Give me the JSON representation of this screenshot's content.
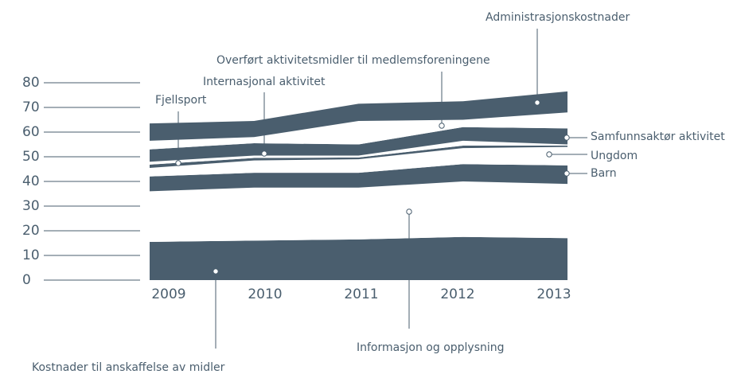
{
  "chart_data": {
    "type": "stacked_area",
    "categories": [
      "2009",
      "2010",
      "2011",
      "2012",
      "2013"
    ],
    "ylim": [
      0,
      80
    ],
    "yticks": [
      0,
      10,
      20,
      30,
      40,
      50,
      60,
      70,
      80
    ],
    "series": [
      {
        "name": "Kostnader til anskaffelse av midler",
        "color": "#4a5e6e",
        "values": [
          15.5,
          16,
          16.5,
          17.5,
          17
        ]
      },
      {
        "name": "Informasjon  og opplysning",
        "color": "#ffffff",
        "values": [
          20.5,
          21.5,
          21,
          22.5,
          22
        ]
      },
      {
        "name": "Barn",
        "color": "#4a5e6e",
        "values": [
          6,
          6,
          6,
          7,
          7.5
        ]
      },
      {
        "name": "Ungdom",
        "color": "#ffffff",
        "values": [
          3.5,
          5,
          5.5,
          6.5,
          7.5
        ]
      },
      {
        "name": "Fjellsport",
        "color": "#4a5e6e",
        "values": [
          1.3,
          1,
          0.7,
          1,
          0.5
        ]
      },
      {
        "name": "Internasjonal aktivitet",
        "color": "#ffffff",
        "values": [
          1.2,
          1,
          0.8,
          2,
          0.5
        ]
      },
      {
        "name": "Samfunnsaktør aktivitet",
        "color": "#4a5e6e",
        "values": [
          5,
          5,
          4.5,
          5.5,
          6.5
        ]
      },
      {
        "name": "Overført aktivitetsmidler til medlemsforeningene",
        "color": "#ffffff",
        "values": [
          3.5,
          2.5,
          9.5,
          3,
          6.5
        ]
      },
      {
        "name": "Administrasjonskostnader",
        "color": "#4a5e6e",
        "values": [
          7,
          6.5,
          7,
          7.5,
          8.5
        ]
      }
    ]
  }
}
